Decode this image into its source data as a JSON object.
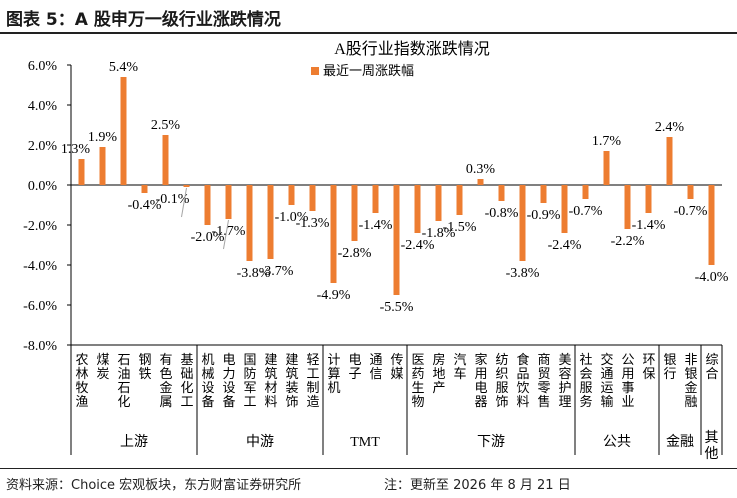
{
  "header": {
    "title": "图表 5：A 股申万一级行业涨跌情况"
  },
  "footer": {
    "source": "资料来源：Choice 宏观板块，东方财富证券研究所",
    "note": "注：更新至 2026 年 8 月 21 日"
  },
  "colors": {
    "bar": "#ED7D31",
    "axis": "#000000",
    "leader": "#a6a6a6"
  },
  "chart_data": {
    "type": "bar",
    "title": "A股行业指数涨跌情况",
    "legend": {
      "entries": [
        "最近一周涨跌幅"
      ],
      "placement": "top-center"
    },
    "ylim": [
      -8,
      6
    ],
    "yticks": [
      "6.0%",
      "4.0%",
      "2.0%",
      "0.0%",
      "-2.0%",
      "-4.0%",
      "-6.0%",
      "-8.0%"
    ],
    "grid": false,
    "categories": [
      "农林牧渔",
      "煤炭",
      "石油石化",
      "钢铁",
      "有色金属",
      "基础化工",
      "机械设备",
      "电力设备",
      "国防军工",
      "建筑材料",
      "建筑装饰",
      "轻工制造",
      "计算机",
      "电子",
      "通信",
      "传媒",
      "医药生物",
      "房地产",
      "汽车",
      "家用电器",
      "纺织服饰",
      "食品饮料",
      "商贸零售",
      "美容护理",
      "社会服务",
      "交通运输",
      "公用事业",
      "环保",
      "银行",
      "非银金融",
      "综合"
    ],
    "values": [
      1.3,
      1.9,
      5.4,
      -0.4,
      2.5,
      -0.1,
      -2.0,
      -1.7,
      -3.8,
      -3.7,
      -1.0,
      -1.3,
      -4.9,
      -2.8,
      -1.4,
      -5.5,
      -2.4,
      -1.8,
      -1.5,
      0.3,
      -0.8,
      -3.8,
      -0.9,
      -2.4,
      -0.7,
      1.7,
      -2.2,
      -1.4,
      2.4,
      -0.7,
      -4.0
    ],
    "data_labels": [
      "1.3%",
      "1.9%",
      "5.4%",
      "-0.4%",
      "2.5%",
      "-0.1%",
      "-2.0%",
      "-1.7%",
      "-3.8%",
      "-3.7%",
      "-1.0%",
      "-1.3%",
      "-4.9%",
      "-2.8%",
      "-1.4%",
      "-5.5%",
      "-2.4%",
      "-1.8%",
      "-1.5%",
      "0.3%",
      "-0.8%",
      "-3.8%",
      "-0.9%",
      "-2.4%",
      "-0.7%",
      "1.7%",
      "-2.2%",
      "-1.4%",
      "2.4%",
      "-0.7%",
      "-4.0%"
    ],
    "groups": [
      {
        "label": "上游",
        "count": 6
      },
      {
        "label": "中游",
        "count": 6
      },
      {
        "label": "TMT",
        "count": 4
      },
      {
        "label": "下游",
        "count": 8
      },
      {
        "label": "公共",
        "count": 4
      },
      {
        "label": "金融",
        "count": 2
      },
      {
        "label": "其他",
        "count": 1
      }
    ]
  }
}
